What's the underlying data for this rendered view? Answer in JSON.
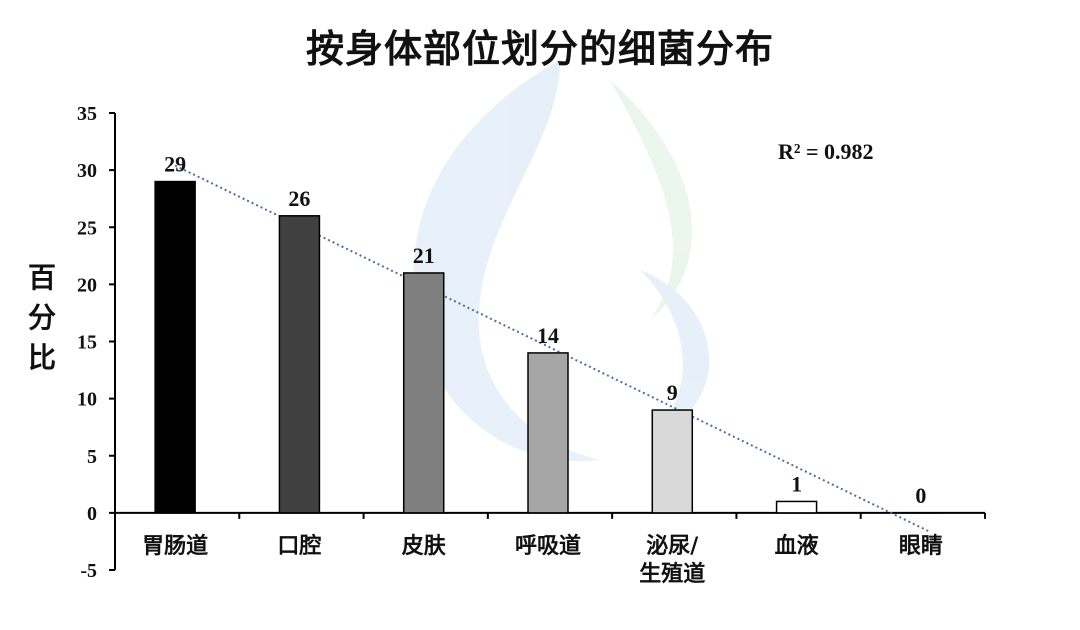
{
  "chart_data": {
    "type": "bar",
    "title": "按身体部位划分的细菌分布",
    "ylabel": "百分比",
    "ylim": [
      -5,
      35
    ],
    "yticks": [
      -5,
      0,
      5,
      10,
      15,
      20,
      25,
      30,
      35
    ],
    "categories": [
      [
        "胃肠道"
      ],
      [
        "口腔"
      ],
      [
        "皮肤"
      ],
      [
        "呼吸道"
      ],
      [
        "泌尿/",
        "生殖道"
      ],
      [
        "血液"
      ],
      [
        "眼睛"
      ]
    ],
    "values": [
      29,
      26,
      21,
      14,
      9,
      1,
      0
    ],
    "data_labels": [
      "29",
      "26",
      "21",
      "14",
      "9",
      "1",
      "0"
    ],
    "bar_colors": [
      "#000000",
      "#404040",
      "#7f7f7f",
      "#a6a6a6",
      "#d9d9d9",
      "#ffffff",
      "#ffffff"
    ],
    "trendline": {
      "type": "linear",
      "style": "dotted",
      "color": "#4a6fa5",
      "start_value": 30.4,
      "end_value": -1.7
    },
    "annotation": "R² = 0.982",
    "grid": false,
    "legend": "none"
  }
}
